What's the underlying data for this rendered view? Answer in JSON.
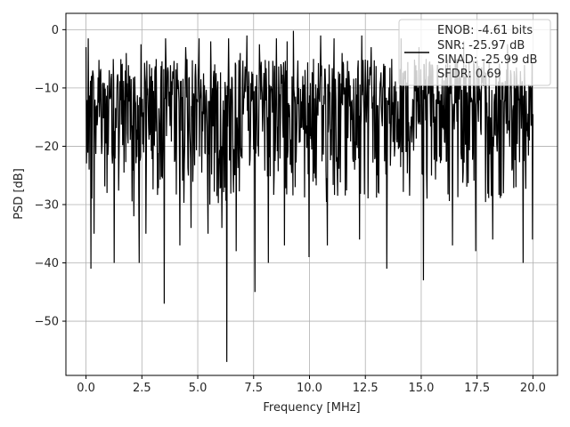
{
  "chart_data": {
    "type": "line",
    "xlabel": "Frequency [MHz]",
    "ylabel": "PSD [dB]",
    "xlim": [
      -0.9,
      21.1
    ],
    "ylim": [
      -59.3,
      2.8
    ],
    "xticks": [
      0.0,
      2.5,
      5.0,
      7.5,
      10.0,
      12.5,
      15.0,
      17.5,
      20.0
    ],
    "xtick_labels": [
      "0.0",
      "2.5",
      "5.0",
      "7.5",
      "10.0",
      "12.5",
      "15.0",
      "17.5",
      "20.0"
    ],
    "yticks": [
      0,
      -10,
      -20,
      -30,
      -40,
      -50
    ],
    "ytick_labels": [
      "0",
      "−10",
      "−20",
      "−30",
      "−40",
      "−50"
    ],
    "grid": true,
    "legend": {
      "placement": "top-right",
      "entries": [
        "ENOB: -4.61 bits",
        "SNR: -25.97 dB",
        "SINAD: -25.99 dB",
        "SFDR: 0.69"
      ]
    },
    "series": [
      {
        "color": "#000000",
        "style": "noisy spectrum, ~1000 samples, 0-20 MHz, dense band roughly -25 to -5 dB",
        "x": [
          0.0,
          0.03,
          0.1,
          0.13,
          0.17,
          0.22,
          0.3,
          0.36,
          0.6,
          0.93,
          1.25,
          1.8,
          2.14,
          2.38,
          2.45,
          2.68,
          2.9,
          3.43,
          3.5,
          3.56,
          4.2,
          4.45,
          4.7,
          5.05,
          5.45,
          5.58,
          6.08,
          6.3,
          6.37,
          6.72,
          6.9,
          7.2,
          7.55,
          7.77,
          8.15,
          8.52,
          8.88,
          9.0,
          9.28,
          9.97,
          10.5,
          10.8,
          11.1,
          11.45,
          12.23,
          12.33,
          12.76,
          13.45,
          14.09,
          14.9,
          15.1,
          15.5,
          16.4,
          16.9,
          17.45,
          17.8,
          18.2,
          18.85,
          19.55,
          19.98
        ],
        "y": [
          -3,
          -18,
          -1.5,
          -24,
          -15,
          -41,
          -7,
          -35,
          -15,
          -28,
          -40,
          -4,
          -32,
          -40,
          -2.5,
          -35,
          -8,
          -20,
          -47,
          -1.5,
          -37,
          -3,
          -34,
          -1.5,
          -35,
          -2,
          -34,
          -57,
          -1.5,
          -38,
          -4,
          -1,
          -45,
          -2.5,
          -40,
          -1.5,
          -37,
          -2,
          -0.2,
          -39,
          -1,
          -37,
          -1.5,
          -4,
          -36,
          -1,
          -3,
          -41,
          -1.5,
          -3,
          -43,
          -6,
          -37,
          -2,
          -38,
          -5,
          -36,
          -2.5,
          -40,
          -36
        ]
      }
    ]
  }
}
